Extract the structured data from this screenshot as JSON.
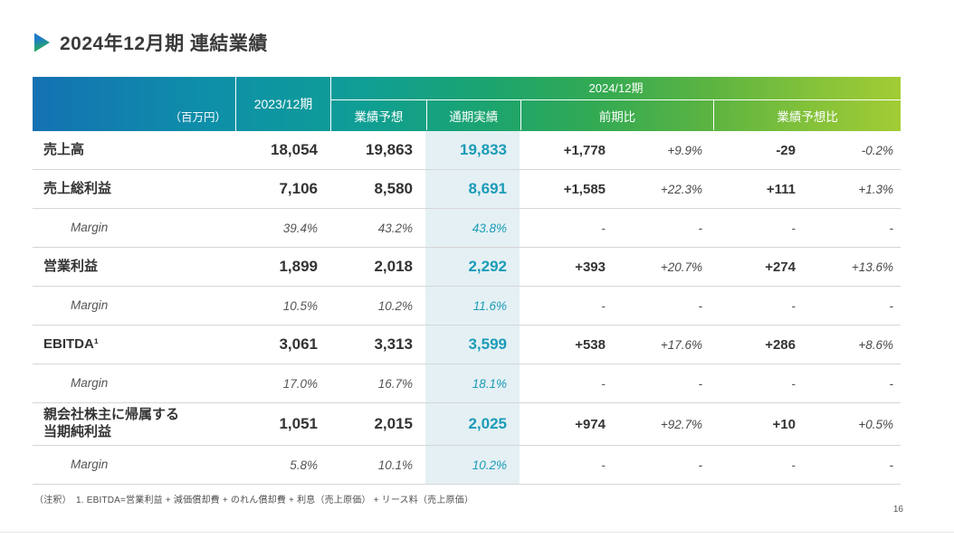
{
  "title": "2024年12月期 連結業績",
  "table": {
    "unit_label": "（百万円）",
    "columns": {
      "fy2023": "2023/12期",
      "fy2024": "2024/12期",
      "forecast": "業績予想",
      "actual": "通期実績",
      "yoy": "前期比",
      "vs_forecast": "業績予想比"
    },
    "rows": [
      {
        "label": "売上高",
        "style": "main",
        "tall": false,
        "fy2023": "18,054",
        "forecast": "19,863",
        "actual": "19,833",
        "yoy": "+1,778",
        "yoy_pct": "+9.9%",
        "vs_forecast": "-29",
        "vs_forecast_pct": "-0.2%"
      },
      {
        "label": "売上総利益",
        "style": "main",
        "tall": false,
        "fy2023": "7,106",
        "forecast": "8,580",
        "actual": "8,691",
        "yoy": "+1,585",
        "yoy_pct": "+22.3%",
        "vs_forecast": "+111",
        "vs_forecast_pct": "+1.3%"
      },
      {
        "label": "Margin",
        "style": "margin",
        "tall": false,
        "fy2023": "39.4%",
        "forecast": "43.2%",
        "actual": "43.8%",
        "yoy": "-",
        "yoy_pct": "-",
        "vs_forecast": "-",
        "vs_forecast_pct": "-"
      },
      {
        "label": "営業利益",
        "style": "main",
        "tall": false,
        "fy2023": "1,899",
        "forecast": "2,018",
        "actual": "2,292",
        "yoy": "+393",
        "yoy_pct": "+20.7%",
        "vs_forecast": "+274",
        "vs_forecast_pct": "+13.6%"
      },
      {
        "label": "Margin",
        "style": "margin",
        "tall": false,
        "fy2023": "10.5%",
        "forecast": "10.2%",
        "actual": "11.6%",
        "yoy": "-",
        "yoy_pct": "-",
        "vs_forecast": "-",
        "vs_forecast_pct": "-"
      },
      {
        "label": "EBITDA¹",
        "style": "main",
        "tall": false,
        "fy2023": "3,061",
        "forecast": "3,313",
        "actual": "3,599",
        "yoy": "+538",
        "yoy_pct": "+17.6%",
        "vs_forecast": "+286",
        "vs_forecast_pct": "+8.6%"
      },
      {
        "label": "Margin",
        "style": "margin",
        "tall": false,
        "fy2023": "17.0%",
        "forecast": "16.7%",
        "actual": "18.1%",
        "yoy": "-",
        "yoy_pct": "-",
        "vs_forecast": "-",
        "vs_forecast_pct": "-"
      },
      {
        "label": "親会社株主に帰属する\n当期純利益",
        "style": "main",
        "tall": true,
        "fy2023": "1,051",
        "forecast": "2,015",
        "actual": "2,025",
        "yoy": "+974",
        "yoy_pct": "+92.7%",
        "vs_forecast": "+10",
        "vs_forecast_pct": "+0.5%"
      },
      {
        "label": "Margin",
        "style": "margin",
        "tall": false,
        "fy2023": "5.8%",
        "forecast": "10.1%",
        "actual": "10.2%",
        "yoy": "-",
        "yoy_pct": "-",
        "vs_forecast": "-",
        "vs_forecast_pct": "-"
      }
    ]
  },
  "footnote": "（注釈）　1. EBITDA=営業利益 + 減価償却費 + のれん償却費 + 利息（売上原価） + リース料（売上原価）",
  "page_number": "16",
  "colors": {
    "header_gradient_start": "#1471b2",
    "header_gradient_end": "#a2cc34",
    "actual_text": "#1b9bb7",
    "actual_bg": "#e4f0f4"
  }
}
